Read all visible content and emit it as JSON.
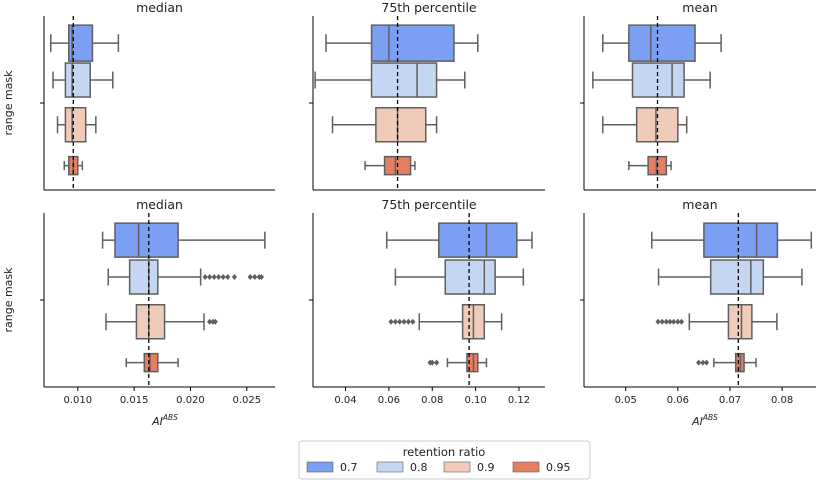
{
  "chart_data": {
    "type": "box",
    "shared": {
      "ylabel": "range mask",
      "xlabel": "AI",
      "xlabel_sup": "ABS",
      "legend": {
        "title": "retention ratio",
        "position": "bottom-center",
        "entries": [
          "0.7",
          "0.8",
          "0.9",
          "0.95"
        ],
        "colors": [
          "#7b9ff2",
          "#c5d6f2",
          "#f0cbb9",
          "#e57f62"
        ]
      },
      "reference_line": "dashed vertical line at overall median"
    },
    "panels": [
      {
        "title": "median",
        "row": 0,
        "col": 0,
        "xlim": [
          0.007,
          0.0275
        ],
        "xticks": [],
        "xtick_labels": [],
        "ref_value": 0.0096,
        "boxes": [
          {
            "name": "0.7",
            "whisker_low": 0.0076,
            "q1": 0.0092,
            "median": 0.0095,
            "q3": 0.0113,
            "whisker_high": 0.0136,
            "outliers": []
          },
          {
            "name": "0.8",
            "whisker_low": 0.0078,
            "q1": 0.0089,
            "median": 0.0095,
            "q3": 0.0111,
            "whisker_high": 0.0131,
            "outliers": []
          },
          {
            "name": "0.9",
            "whisker_low": 0.0082,
            "q1": 0.0089,
            "median": 0.0095,
            "q3": 0.0107,
            "whisker_high": 0.0116,
            "outliers": []
          },
          {
            "name": "0.95",
            "whisker_low": 0.0088,
            "q1": 0.0092,
            "median": 0.0096,
            "q3": 0.01,
            "whisker_high": 0.0104,
            "outliers": []
          }
        ]
      },
      {
        "title": "75th percentile",
        "row": 0,
        "col": 1,
        "xlim": [
          0.025,
          0.132
        ],
        "xticks": [],
        "xtick_labels": [],
        "ref_value": 0.064,
        "boxes": [
          {
            "name": "0.7",
            "whisker_low": 0.031,
            "q1": 0.052,
            "median": 0.06,
            "q3": 0.09,
            "whisker_high": 0.101,
            "outliers": []
          },
          {
            "name": "0.8",
            "whisker_low": 0.026,
            "q1": 0.052,
            "median": 0.073,
            "q3": 0.082,
            "whisker_high": 0.095,
            "outliers": []
          },
          {
            "name": "0.9",
            "whisker_low": 0.034,
            "q1": 0.054,
            "median": 0.064,
            "q3": 0.077,
            "whisker_high": 0.082,
            "outliers": []
          },
          {
            "name": "0.95",
            "whisker_low": 0.049,
            "q1": 0.058,
            "median": 0.063,
            "q3": 0.07,
            "whisker_high": 0.072,
            "outliers": []
          }
        ]
      },
      {
        "title": "mean",
        "row": 0,
        "col": 2,
        "xlim": [
          0.042,
          0.0865
        ],
        "xticks": [],
        "xtick_labels": [],
        "ref_value": 0.0561,
        "boxes": [
          {
            "name": "0.7",
            "whisker_low": 0.0456,
            "q1": 0.0506,
            "median": 0.0548,
            "q3": 0.0633,
            "whisker_high": 0.0683,
            "outliers": []
          },
          {
            "name": "0.8",
            "whisker_low": 0.0437,
            "q1": 0.0513,
            "median": 0.0589,
            "q3": 0.0612,
            "whisker_high": 0.0662,
            "outliers": []
          },
          {
            "name": "0.9",
            "whisker_low": 0.0456,
            "q1": 0.0521,
            "median": 0.0558,
            "q3": 0.06,
            "whisker_high": 0.0617,
            "outliers": []
          },
          {
            "name": "0.95",
            "whisker_low": 0.0506,
            "q1": 0.0543,
            "median": 0.0559,
            "q3": 0.0578,
            "whisker_high": 0.0587,
            "outliers": []
          }
        ]
      },
      {
        "title": "median",
        "row": 1,
        "col": 0,
        "xlim": [
          0.007,
          0.0275
        ],
        "xticks": [
          0.01,
          0.015,
          0.02,
          0.025
        ],
        "xtick_labels": [
          "0.010",
          "0.015",
          "0.020",
          "0.025"
        ],
        "ref_value": 0.0163,
        "boxes": [
          {
            "name": "0.7",
            "whisker_low": 0.0122,
            "q1": 0.0133,
            "median": 0.0154,
            "q3": 0.0189,
            "whisker_high": 0.0266,
            "outliers": []
          },
          {
            "name": "0.8",
            "whisker_low": 0.0127,
            "q1": 0.0146,
            "median": 0.0163,
            "q3": 0.0171,
            "whisker_high": 0.0209,
            "outliers": [
              0.0213,
              0.0217,
              0.0221,
              0.0225,
              0.0229,
              0.0233,
              0.0239,
              0.0253,
              0.0257,
              0.0261,
              0.0263
            ]
          },
          {
            "name": "0.9",
            "whisker_low": 0.0125,
            "q1": 0.0152,
            "median": 0.0163,
            "q3": 0.0177,
            "whisker_high": 0.0212,
            "outliers": [
              0.0217,
              0.022,
              0.0222
            ]
          },
          {
            "name": "0.95",
            "whisker_low": 0.0143,
            "q1": 0.0159,
            "median": 0.0164,
            "q3": 0.0171,
            "whisker_high": 0.0189,
            "outliers": []
          }
        ]
      },
      {
        "title": "75th percentile",
        "row": 1,
        "col": 1,
        "xlim": [
          0.025,
          0.132
        ],
        "xticks": [
          0.04,
          0.06,
          0.08,
          0.1,
          0.12
        ],
        "xtick_labels": [
          "0.04",
          "0.06",
          "0.08",
          "0.10",
          "0.12"
        ],
        "ref_value": 0.097,
        "boxes": [
          {
            "name": "0.7",
            "whisker_low": 0.059,
            "q1": 0.083,
            "median": 0.105,
            "q3": 0.119,
            "whisker_high": 0.126,
            "outliers": []
          },
          {
            "name": "0.8",
            "whisker_low": 0.063,
            "q1": 0.086,
            "median": 0.104,
            "q3": 0.109,
            "whisker_high": 0.122,
            "outliers": []
          },
          {
            "name": "0.9",
            "whisker_low": 0.074,
            "q1": 0.094,
            "median": 0.099,
            "q3": 0.104,
            "whisker_high": 0.112,
            "outliers": [
              0.061,
              0.063,
              0.065,
              0.067,
              0.069,
              0.071
            ]
          },
          {
            "name": "0.95",
            "whisker_low": 0.087,
            "q1": 0.096,
            "median": 0.099,
            "q3": 0.101,
            "whisker_high": 0.105,
            "outliers": [
              0.079,
              0.08,
              0.082
            ]
          }
        ]
      },
      {
        "title": "mean",
        "row": 1,
        "col": 2,
        "xlim": [
          0.042,
          0.0865
        ],
        "xticks": [
          0.05,
          0.06,
          0.07,
          0.08
        ],
        "xtick_labels": [
          "0.05",
          "0.06",
          "0.07",
          "0.08"
        ],
        "ref_value": 0.0716,
        "boxes": [
          {
            "name": "0.7",
            "whisker_low": 0.055,
            "q1": 0.065,
            "median": 0.0751,
            "q3": 0.0791,
            "whisker_high": 0.0856,
            "outliers": []
          },
          {
            "name": "0.8",
            "whisker_low": 0.0563,
            "q1": 0.0663,
            "median": 0.074,
            "q3": 0.0764,
            "whisker_high": 0.0838,
            "outliers": []
          },
          {
            "name": "0.9",
            "whisker_low": 0.0622,
            "q1": 0.0697,
            "median": 0.0722,
            "q3": 0.0742,
            "whisker_high": 0.079,
            "outliers": [
              0.0562,
              0.057,
              0.0578,
              0.0585,
              0.0592,
              0.06,
              0.0607
            ]
          },
          {
            "name": "0.95",
            "whisker_low": 0.0669,
            "q1": 0.0711,
            "median": 0.072,
            "q3": 0.0727,
            "whisker_high": 0.075,
            "outliers": [
              0.064,
              0.0648,
              0.0655
            ]
          }
        ]
      }
    ]
  }
}
